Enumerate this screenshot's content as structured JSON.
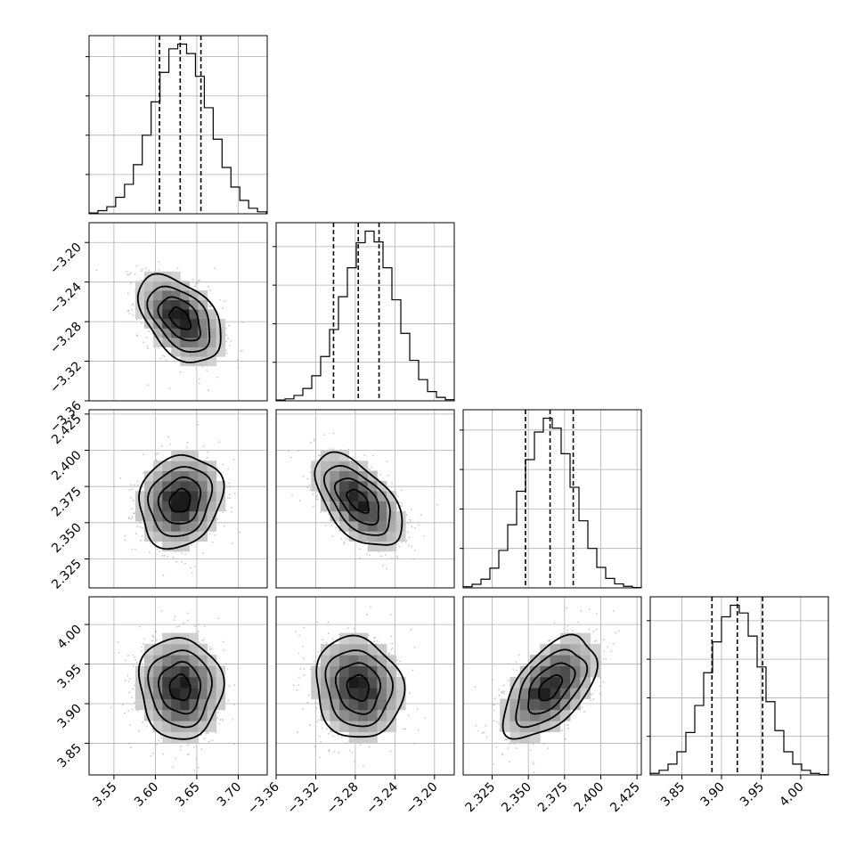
{
  "chart_data": {
    "type": "corner",
    "grid": true,
    "parameters": [
      {
        "id": "p0",
        "median": 3.63,
        "q16": 3.605,
        "q84": 3.655,
        "sigma": 0.025,
        "xlim": [
          3.52,
          3.735
        ],
        "ticks": [
          3.55,
          3.6,
          3.65,
          3.7
        ],
        "tick_labels": [
          "3.55",
          "3.60",
          "3.65",
          "3.70"
        ],
        "hist_edges_start": 3.52,
        "hist_bin_width": 0.0107,
        "hist_counts": [
          2,
          8,
          18,
          42,
          75,
          125,
          200,
          285,
          360,
          420,
          432,
          408,
          350,
          270,
          190,
          118,
          68,
          34,
          14,
          5
        ]
      },
      {
        "id": "p1",
        "median": -3.277,
        "q16": -3.302,
        "q84": -3.256,
        "sigma": 0.022,
        "xlim": [
          -3.36,
          -3.18
        ],
        "ticks": [
          -3.36,
          -3.32,
          -3.28,
          -3.24,
          -3.2
        ],
        "tick_labels": [
          "−3.36",
          "−3.32",
          "−3.28",
          "−3.24",
          "−3.20"
        ],
        "hist_edges_start": -3.36,
        "hist_bin_width": 0.009,
        "hist_counts": [
          2,
          5,
          14,
          32,
          65,
          115,
          185,
          270,
          345,
          410,
          440,
          412,
          345,
          262,
          175,
          105,
          55,
          24,
          9,
          3
        ]
      },
      {
        "id": "p2",
        "median": 2.365,
        "q16": 2.348,
        "q84": 2.381,
        "sigma": 0.016,
        "xlim": [
          2.305,
          2.428
        ],
        "ticks": [
          2.325,
          2.35,
          2.375,
          2.4,
          2.425
        ],
        "tick_labels": [
          "2.325",
          "2.350",
          "2.375",
          "2.400",
          "2.425"
        ],
        "hist_edges_start": 2.305,
        "hist_bin_width": 0.00615,
        "hist_counts": [
          3,
          9,
          22,
          50,
          95,
          160,
          245,
          325,
          395,
          430,
          405,
          340,
          255,
          170,
          100,
          52,
          24,
          10,
          4,
          1
        ]
      },
      {
        "id": "p3",
        "median": 3.92,
        "q16": 3.888,
        "q84": 3.952,
        "sigma": 0.032,
        "xlim": [
          3.81,
          4.035
        ],
        "ticks": [
          3.85,
          3.9,
          3.95,
          4.0
        ],
        "tick_labels": [
          "3.85",
          "3.90",
          "3.95",
          "4.00"
        ],
        "hist_edges_start": 3.81,
        "hist_bin_width": 0.01125,
        "hist_counts": [
          4,
          12,
          28,
          60,
          110,
          180,
          265,
          345,
          410,
          440,
          420,
          360,
          280,
          190,
          115,
          60,
          28,
          12,
          4,
          1
        ]
      }
    ],
    "hist_yticks": [
      [
        100,
        200,
        300,
        400
      ],
      [
        100,
        200,
        300,
        400
      ],
      [
        100,
        200,
        300,
        400
      ],
      [
        100,
        200,
        300,
        400
      ]
    ],
    "pairs": [
      {
        "row": "p1",
        "col": "p0",
        "rho": -0.45
      },
      {
        "row": "p2",
        "col": "p0",
        "rho": 0.15
      },
      {
        "row": "p2",
        "col": "p1",
        "rho": -0.55
      },
      {
        "row": "p3",
        "col": "p0",
        "rho": -0.05
      },
      {
        "row": "p3",
        "col": "p1",
        "rho": -0.1
      },
      {
        "row": "p3",
        "col": "p2",
        "rho": 0.55
      }
    ],
    "contour_levels_sigma": [
      0.5,
      1.0,
      1.5,
      2.0
    ],
    "scatter_points_per_panel": 900,
    "colors": {
      "line": "#000000",
      "grid": "#b0b0b0",
      "scatter": "#9a9a9a",
      "density_dark": "#1a1a1a",
      "density_light": "#e8e8e8"
    }
  }
}
